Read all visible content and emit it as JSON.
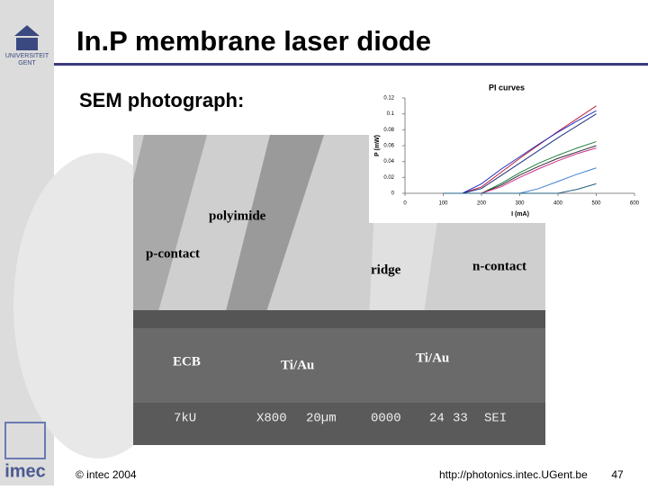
{
  "header": {
    "title": "In.P membrane laser diode",
    "university": [
      "UNIVERSITEIT",
      "GENT"
    ]
  },
  "subtitle": "SEM photograph:",
  "sem": {
    "labels": [
      "polyimide",
      "p-contact",
      "ridge",
      "n-contact",
      "ECB",
      "Ti/Au",
      "Ti/Au"
    ],
    "info": [
      "7kU",
      "X800",
      "20µm",
      "0000",
      "24",
      "33",
      "SEI"
    ]
  },
  "footer": {
    "logo": "imec",
    "copyright": "© intec 2004",
    "url": "http://photonics.intec.UGent.be",
    "page": "47"
  },
  "chart_data": {
    "type": "line",
    "title": "PI curves",
    "xlabel": "I (mA)",
    "ylabel": "P (mW)",
    "x": [
      100,
      150,
      200,
      250,
      300,
      350,
      400,
      450,
      500
    ],
    "xlim": [
      0,
      600
    ],
    "xticks": [
      0,
      100,
      200,
      300,
      400,
      500,
      600
    ],
    "ylim": [
      0,
      0.12
    ],
    "yticks": [
      0,
      0.02,
      0.04,
      0.06,
      0.08,
      0.1,
      0.12
    ],
    "series": [
      {
        "color": "#c0203a",
        "values": [
          0,
          0,
          0.008,
          0.026,
          0.044,
          0.061,
          0.078,
          0.094,
          0.11
        ]
      },
      {
        "color": "#2030c0",
        "values": [
          0,
          0,
          0.012,
          0.03,
          0.046,
          0.062,
          0.077,
          0.091,
          0.104
        ]
      },
      {
        "color": "#203080",
        "values": [
          0,
          0,
          0.006,
          0.022,
          0.038,
          0.054,
          0.07,
          0.085,
          0.1
        ]
      },
      {
        "color": "#208040",
        "values": [
          0,
          0,
          0,
          0.012,
          0.026,
          0.038,
          0.048,
          0.057,
          0.065
        ]
      },
      {
        "color": "#303030",
        "values": [
          0,
          0,
          0,
          0.01,
          0.023,
          0.034,
          0.044,
          0.052,
          0.06
        ]
      },
      {
        "color": "#d03090",
        "values": [
          0,
          0,
          0,
          0.008,
          0.02,
          0.031,
          0.041,
          0.05,
          0.057
        ]
      },
      {
        "color": "#4080d0",
        "values": [
          0,
          0,
          0,
          0,
          0,
          0.006,
          0.015,
          0.024,
          0.032
        ]
      },
      {
        "color": "#206080",
        "values": [
          0,
          0,
          0,
          0,
          0,
          0,
          0,
          0.005,
          0.012
        ]
      }
    ]
  }
}
